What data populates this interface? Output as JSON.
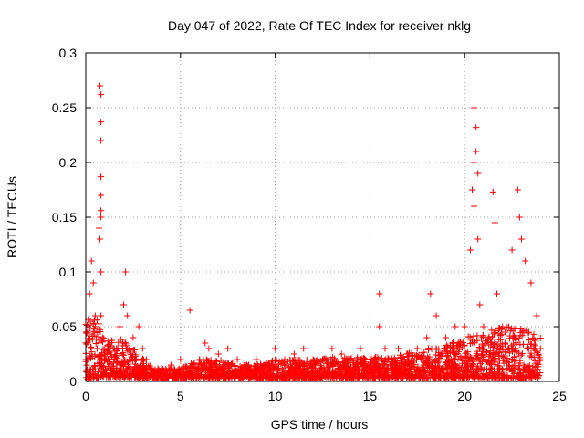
{
  "chart_data": {
    "type": "scatter",
    "title": "Day 047 of 2022, Rate Of TEC Index for receiver nklg",
    "xlabel": "GPS time / hours",
    "ylabel": "ROTI / TECUs",
    "xlim": [
      0,
      25
    ],
    "ylim": [
      0,
      0.3
    ],
    "xticks": [
      0,
      5,
      10,
      15,
      20,
      25
    ],
    "yticks": [
      0,
      0.05,
      0.1,
      0.15,
      0.2,
      0.25,
      0.3
    ],
    "xtick_labels": [
      "0",
      "5",
      "10",
      "15",
      "20",
      "25"
    ],
    "ytick_labels": [
      "0",
      "0.05",
      "0.1",
      "0.15",
      "0.2",
      "0.25",
      "0.3"
    ],
    "grid": true,
    "marker": "plus",
    "color": "#ff0000",
    "series": [
      {
        "x": [
          0.1,
          0.2,
          0.3,
          0.4,
          0.5,
          0.6,
          0.7,
          0.75,
          0.75,
          0.8,
          0.8,
          0.8,
          0.8,
          0.8,
          0.8,
          0.8,
          0.8,
          0.8,
          0.9,
          1.0,
          1.2,
          1.5,
          1.8,
          2.0,
          2.1,
          2.2,
          2.2,
          2.3,
          2.5,
          2.8,
          3.0,
          3.2,
          3.5,
          4.0,
          4.5,
          5.0,
          5.5,
          5.5,
          6.0,
          6.3,
          6.5,
          7.0,
          7.5,
          8.0,
          8.5,
          9.0,
          9.5,
          10.0,
          10.5,
          11.0,
          11.5,
          12.0,
          12.5,
          13.0,
          13.5,
          14.0,
          14.5,
          15.0,
          15.5,
          15.5,
          15.8,
          16.0,
          16.5,
          17.0,
          17.5,
          18.0,
          18.2,
          18.5,
          19.0,
          19.5,
          20.0,
          20.3,
          20.4,
          20.5,
          20.5,
          20.5,
          20.6,
          20.6,
          20.7,
          20.7,
          20.8,
          21.0,
          21.5,
          21.6,
          21.7,
          22.0,
          22.5,
          22.8,
          22.9,
          23.0,
          23.2,
          23.5,
          23.8,
          24.0
        ],
        "y": [
          0.02,
          0.08,
          0.11,
          0.09,
          0.06,
          0.03,
          0.14,
          0.13,
          0.27,
          0.262,
          0.237,
          0.22,
          0.187,
          0.17,
          0.156,
          0.15,
          0.1,
          0.06,
          0.04,
          0.03,
          0.02,
          0.03,
          0.05,
          0.07,
          0.1,
          0.06,
          0.03,
          0.02,
          0.04,
          0.05,
          0.03,
          0.02,
          0.01,
          0.012,
          0.015,
          0.02,
          0.065,
          0.01,
          0.02,
          0.035,
          0.03,
          0.025,
          0.03,
          0.02,
          0.015,
          0.02,
          0.015,
          0.03,
          0.02,
          0.025,
          0.03,
          0.02,
          0.02,
          0.03,
          0.025,
          0.02,
          0.03,
          0.02,
          0.08,
          0.05,
          0.03,
          0.02,
          0.03,
          0.025,
          0.03,
          0.04,
          0.08,
          0.06,
          0.04,
          0.05,
          0.05,
          0.12,
          0.175,
          0.25,
          0.2,
          0.16,
          0.232,
          0.21,
          0.19,
          0.13,
          0.07,
          0.05,
          0.173,
          0.145,
          0.08,
          0.05,
          0.12,
          0.175,
          0.15,
          0.13,
          0.11,
          0.09,
          0.06,
          0.03
        ],
        "band": [
          [
            0.0,
            0.002,
            0.06
          ],
          [
            0.5,
            0.003,
            0.06
          ],
          [
            1.0,
            0.004,
            0.045
          ],
          [
            1.5,
            0.004,
            0.035
          ],
          [
            2.0,
            0.004,
            0.04
          ],
          [
            2.5,
            0.004,
            0.03
          ],
          [
            3.0,
            0.003,
            0.022
          ],
          [
            3.5,
            0.003,
            0.012
          ],
          [
            4.0,
            0.003,
            0.012
          ],
          [
            5.0,
            0.003,
            0.012
          ],
          [
            6.0,
            0.003,
            0.02
          ],
          [
            7.0,
            0.003,
            0.02
          ],
          [
            8.0,
            0.003,
            0.015
          ],
          [
            9.0,
            0.003,
            0.016
          ],
          [
            10.0,
            0.003,
            0.02
          ],
          [
            11.0,
            0.003,
            0.02
          ],
          [
            12.0,
            0.003,
            0.02
          ],
          [
            13.0,
            0.003,
            0.022
          ],
          [
            14.0,
            0.003,
            0.022
          ],
          [
            15.0,
            0.003,
            0.022
          ],
          [
            16.0,
            0.003,
            0.024
          ],
          [
            17.0,
            0.003,
            0.026
          ],
          [
            18.0,
            0.003,
            0.03
          ],
          [
            19.0,
            0.003,
            0.034
          ],
          [
            20.0,
            0.003,
            0.04
          ],
          [
            21.0,
            0.003,
            0.045
          ],
          [
            22.0,
            0.003,
            0.05
          ],
          [
            23.0,
            0.003,
            0.05
          ],
          [
            24.0,
            0.003,
            0.04
          ]
        ]
      }
    ]
  }
}
